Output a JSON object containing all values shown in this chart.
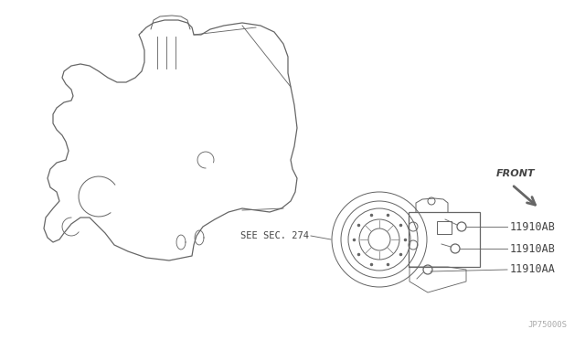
{
  "bg_color": "#ffffff",
  "line_color": "#666666",
  "text_color": "#444444",
  "watermark": "JP75000S",
  "labels": {
    "front": "FRONT",
    "sec": "SEE SEC. 274",
    "bolt1": "11910AB",
    "bolt2": "11910AB",
    "bolt3": "11910AA"
  }
}
